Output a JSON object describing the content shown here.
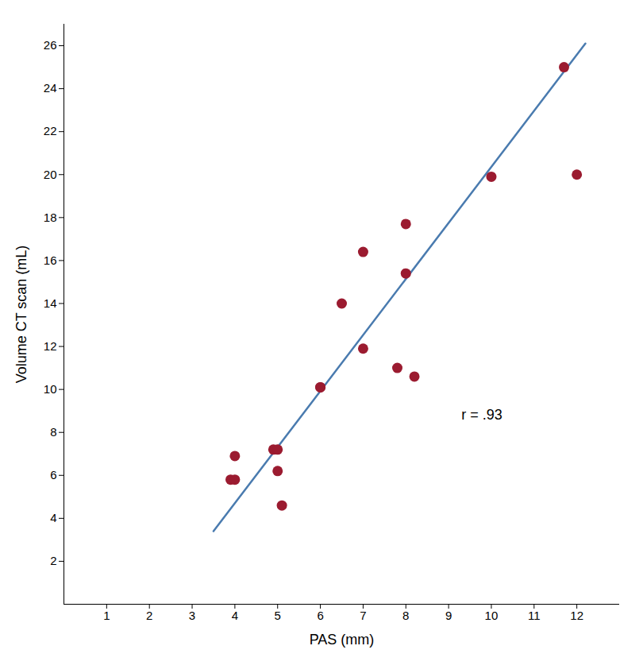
{
  "chart_data": {
    "type": "scatter",
    "xlabel": "PAS (mm)",
    "ylabel": "Volume CT scan (mL)",
    "series": [
      {
        "type": "scatter",
        "color": "#9B1B30",
        "x": [
          3.9,
          4.0,
          4.0,
          4.9,
          5.0,
          5.0,
          5.1,
          6.0,
          6.0,
          6.5,
          7.0,
          7.0,
          7.8,
          8.0,
          8.0,
          8.2,
          10.0,
          11.7,
          12.0
        ],
        "values": [
          5.8,
          6.9,
          5.8,
          7.2,
          7.2,
          6.2,
          4.6,
          10.1,
          10.1,
          14.0,
          16.4,
          11.9,
          11.0,
          17.7,
          15.4,
          10.6,
          19.9,
          25.0,
          20.0
        ]
      },
      {
        "type": "line",
        "color": "#4A7BAF",
        "x": [
          3.5,
          12.2
        ],
        "values": [
          3.4,
          26.1
        ]
      }
    ],
    "annotations": [
      {
        "text": "r = .93",
        "x": 9.3,
        "y": 8.8
      }
    ],
    "xlim": [
      0,
      13
    ],
    "ylim": [
      0,
      27
    ],
    "xticks": [
      1,
      2,
      3,
      4,
      5,
      6,
      7,
      8,
      9,
      10,
      11,
      12
    ],
    "yticks": [
      2,
      4,
      6,
      8,
      10,
      12,
      14,
      16,
      18,
      20,
      22,
      24,
      26
    ],
    "grid": false
  }
}
